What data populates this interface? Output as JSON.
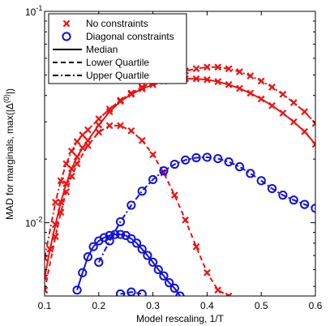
{
  "chart_data": {
    "type": "line",
    "xlabel": "Model rescaling, 1/T",
    "ylabel": "MAD for marginals, max(|Δ",
    "ylabel_sup": "(0)",
    "ylabel_end": "|)",
    "xlim": [
      0.1,
      0.6
    ],
    "ylim": [
      0.0045,
      0.1
    ],
    "yscale": "log",
    "x_ticks": [
      0.1,
      0.2,
      0.3,
      0.4,
      0.5,
      0.6
    ],
    "x_tick_labels": [
      "0.1",
      "0.2",
      "0.3",
      "0.4",
      "0.5",
      "0.6"
    ],
    "y_ticks": [
      {
        "value": 0.01,
        "base": "10",
        "exp": "-2"
      },
      {
        "value": 0.1,
        "base": "10",
        "exp": "-1"
      }
    ],
    "legend": {
      "placement": "top-left",
      "entries": [
        {
          "label": "No constraints",
          "marker": "x",
          "color": "#ee1111"
        },
        {
          "label": "Diagonal constraints",
          "marker": "o",
          "color": "#1111dd"
        },
        {
          "label": "Median",
          "line": "solid",
          "color": "#000000"
        },
        {
          "label": "Lower Quartile",
          "line": "dashed",
          "color": "#000000"
        },
        {
          "label": "Upper Quartile",
          "line": "dashdot",
          "color": "#000000"
        }
      ]
    },
    "series": [
      {
        "group": "no-constraints",
        "stat": "median",
        "line": "solid",
        "marker": "x",
        "color": "#ee1111",
        "x": [
          0.1,
          0.11,
          0.12,
          0.13,
          0.14,
          0.15,
          0.16,
          0.17,
          0.18,
          0.2,
          0.22,
          0.24,
          0.26,
          0.28,
          0.3,
          0.32,
          0.34,
          0.36,
          0.38,
          0.4,
          0.42,
          0.44,
          0.46,
          0.48,
          0.5,
          0.52,
          0.54,
          0.56,
          0.58,
          0.6
        ],
        "y": [
          0.0055,
          0.0075,
          0.0098,
          0.0125,
          0.0153,
          0.018,
          0.0205,
          0.0226,
          0.0245,
          0.029,
          0.0335,
          0.0375,
          0.0405,
          0.043,
          0.045,
          0.0468,
          0.0476,
          0.048,
          0.048,
          0.0475,
          0.0465,
          0.045,
          0.0432,
          0.041,
          0.0385,
          0.0358,
          0.033,
          0.03,
          0.027,
          0.0235
        ]
      },
      {
        "group": "no-constraints",
        "stat": "upper",
        "line": "dashdot",
        "marker": "x",
        "color": "#ee1111",
        "x": [
          0.1,
          0.12,
          0.13,
          0.14,
          0.15,
          0.16,
          0.17,
          0.18,
          0.2,
          0.22,
          0.24,
          0.26,
          0.28,
          0.3,
          0.32,
          0.34,
          0.36,
          0.38,
          0.4,
          0.42,
          0.44,
          0.46,
          0.48,
          0.5,
          0.52,
          0.54,
          0.56,
          0.58,
          0.6
        ],
        "y": [
          0.0068,
          0.0125,
          0.0158,
          0.019,
          0.0218,
          0.0242,
          0.026,
          0.0275,
          0.031,
          0.0345,
          0.038,
          0.041,
          0.0438,
          0.0462,
          0.0485,
          0.0505,
          0.0522,
          0.0536,
          0.0545,
          0.0545,
          0.0535,
          0.0518,
          0.0495,
          0.0468,
          0.0438,
          0.0405,
          0.037,
          0.0335,
          0.0295
        ]
      },
      {
        "group": "no-constraints",
        "stat": "lower",
        "line": "dashed",
        "marker": "x",
        "color": "#ee1111",
        "x": [
          0.1,
          0.12,
          0.13,
          0.14,
          0.15,
          0.16,
          0.18,
          0.2,
          0.22,
          0.24,
          0.26,
          0.28,
          0.3,
          0.32,
          0.34,
          0.36,
          0.38,
          0.4,
          0.42,
          0.44
        ],
        "y": [
          0.0048,
          0.0086,
          0.0112,
          0.014,
          0.0166,
          0.019,
          0.0232,
          0.0268,
          0.0288,
          0.0288,
          0.0272,
          0.0245,
          0.021,
          0.0172,
          0.0135,
          0.0103,
          0.0077,
          0.0058,
          0.0048,
          0.0045
        ]
      },
      {
        "group": "diagonal-constraints",
        "stat": "upper",
        "line": "dashdot",
        "marker": "o",
        "color": "#1111dd",
        "x": [
          0.2,
          0.22,
          0.24,
          0.26,
          0.28,
          0.3,
          0.32,
          0.34,
          0.36,
          0.38,
          0.4,
          0.42,
          0.44,
          0.46,
          0.48,
          0.5,
          0.52,
          0.54,
          0.56,
          0.58,
          0.6
        ],
        "y": [
          0.0065,
          0.0082,
          0.0101,
          0.0121,
          0.0141,
          0.016,
          0.0176,
          0.0189,
          0.0198,
          0.0203,
          0.0204,
          0.0201,
          0.0194,
          0.0184,
          0.0171,
          0.0158,
          0.0145,
          0.0135,
          0.0128,
          0.0122,
          0.0117
        ]
      },
      {
        "group": "diagonal-constraints",
        "stat": "median",
        "line": "solid",
        "marker": "o",
        "color": "#1111dd",
        "x": [
          0.16,
          0.17,
          0.18,
          0.19,
          0.2,
          0.21,
          0.22,
          0.23,
          0.24,
          0.25,
          0.26,
          0.27,
          0.28,
          0.29,
          0.3,
          0.31,
          0.32,
          0.33,
          0.34,
          0.35
        ],
        "y": [
          0.0048,
          0.0058,
          0.0069,
          0.0077,
          0.0082,
          0.0085,
          0.0087,
          0.0088,
          0.0088,
          0.0087,
          0.0084,
          0.008,
          0.0075,
          0.007,
          0.0065,
          0.006,
          0.0056,
          0.0052,
          0.0049,
          0.0045
        ]
      },
      {
        "group": "diagonal-constraints",
        "stat": "lower",
        "line": "dashed",
        "marker": "o",
        "color": "#1111dd",
        "x": [
          0.24,
          0.26,
          0.28
        ],
        "y": [
          0.0046,
          0.0047,
          0.0046
        ]
      }
    ]
  }
}
